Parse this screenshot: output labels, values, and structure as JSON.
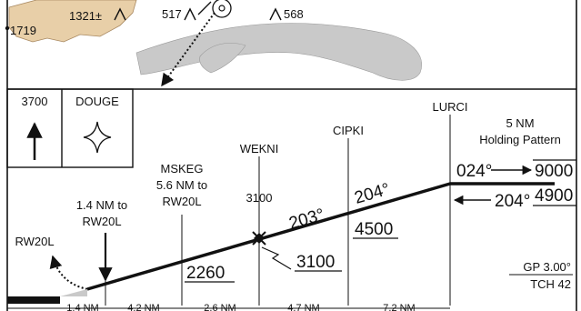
{
  "plan_view": {
    "terrain_elevations": [
      "1719",
      "1321±",
      "517",
      "568"
    ]
  },
  "minimums_box": {
    "altitude": "3700",
    "fix_name": "DOUGE"
  },
  "fixes": [
    {
      "name": "WEKNI",
      "altitude": "3100",
      "crossing_altitude": "3100"
    },
    {
      "name": "CIPKI",
      "min_altitude": "4500"
    },
    {
      "name": "LURCI",
      "outbound_course": "024°",
      "inbound_course": "204°",
      "altitude_max": "9000",
      "altitude_min": "4900"
    }
  ],
  "holding": {
    "line1": "5 NM",
    "line2": "Holding Pattern"
  },
  "mskeg": {
    "name": "MSKEG",
    "distance": "5.6 NM to",
    "runway": "RW20L",
    "altitude": "2260"
  },
  "threshold_fix": {
    "line1": "1.4 NM to",
    "line2": "RW20L"
  },
  "runway_label": "RW20L",
  "courses": {
    "seg1": "203°",
    "seg2": "204°"
  },
  "glidepath": {
    "gp": "GP 3.00°",
    "tch": "TCH 42"
  },
  "segment_distances": [
    "1.4 NM",
    "4.2 NM",
    "2.6 NM",
    "4.7 NM",
    "7.2 NM"
  ],
  "colors": {
    "terrain": "#e8cfa8",
    "water": "#c8c8c8",
    "ink": "#111111"
  }
}
